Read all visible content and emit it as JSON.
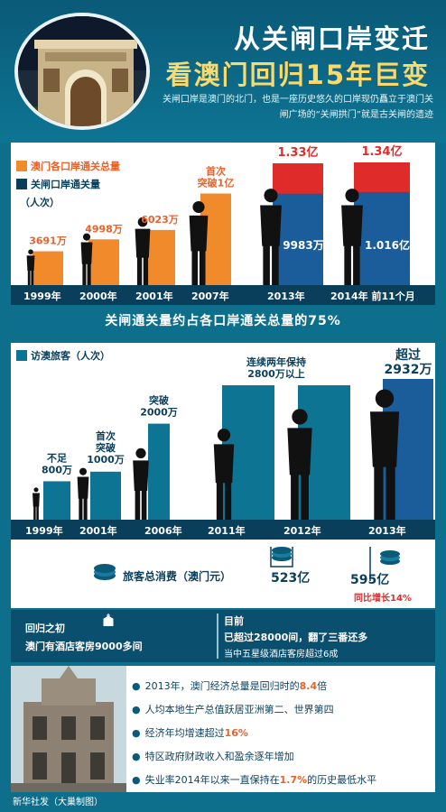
{
  "header": {
    "title_line1": "从关闸口岸变迁",
    "title_line2": "看澳门回归15年巨变",
    "subtitle": "关闸口岸是澳门的北门，也是一座历史悠久的口岸现仍矗立于澳门关闸广场的“关闸拱门”就是古关闸的遗迹"
  },
  "colors": {
    "orange": "#f08a2a",
    "red": "#e02b2b",
    "navy": "#0a3f5c",
    "teal": "#0d7593",
    "blue": "#1b5d9a"
  },
  "chart_data": [
    {
      "type": "bar",
      "legend": [
        "澳门各口岸通关总量",
        "关闸口岸通关量"
      ],
      "unit": "（人次）",
      "categories": [
        "1999年",
        "2000年",
        "2001年",
        "2007年",
        "2013年",
        "2014年 前11个月"
      ],
      "series": [
        {
          "name": "澳门各口岸通关总量",
          "values": [
            3691,
            4998,
            6023,
            10000,
            13300,
            13400
          ]
        },
        {
          "name": "关闸口岸通关量",
          "values": [
            null,
            null,
            null,
            null,
            9983,
            10160
          ]
        }
      ],
      "labels": [
        "3691万",
        "4998万",
        "6023万",
        "首次\n突破1亿",
        "1.33亿",
        "1.34亿"
      ],
      "inner_labels": [
        "9983万",
        "1.016亿"
      ],
      "stat": "关闸通关量约占各口岸通关总量的75%"
    },
    {
      "type": "bar",
      "title": "访澳旅客（人次）",
      "categories": [
        "1999年",
        "2001年",
        "2006年",
        "2011年",
        "2012年",
        "2013年"
      ],
      "values": [
        800,
        1000,
        2000,
        2800,
        2800,
        2932
      ],
      "labels": [
        "不足\n800万",
        "首次\n突破\n1000万",
        "突破\n2000万",
        "连续两年保持\n2800万以上",
        "",
        "超过\n2932万"
      ],
      "spending": {
        "title": "旅客总消费（澳门元）",
        "values": [
          "523亿",
          "595亿"
        ],
        "growth": "同比增长14%"
      }
    }
  ],
  "hotel": {
    "left_line1": "回归之初",
    "left_line2": "澳门有酒店客房9000多间",
    "right_line1": "目前",
    "right_line2": "已超过28000间，翻了三番还多",
    "right_line3": "当中五星级酒店客房超过6成"
  },
  "facts": [
    {
      "pre": "2013年，澳门经济总量是回归时的",
      "hl": "8.4",
      "post": "倍"
    },
    {
      "pre": "人均本地生产总值跃居亚洲第二、世界第四",
      "hl": "",
      "post": ""
    },
    {
      "pre": "经济年均增速超过",
      "hl": "16%",
      "post": ""
    },
    {
      "pre": "特区政府财政收入和盈余逐年增加",
      "hl": "",
      "post": ""
    },
    {
      "pre": "失业率2014年以来一直保持在",
      "hl": "1.7%",
      "post": "的历史最低水平"
    }
  ],
  "credit": "新华社发（大巢制图）"
}
